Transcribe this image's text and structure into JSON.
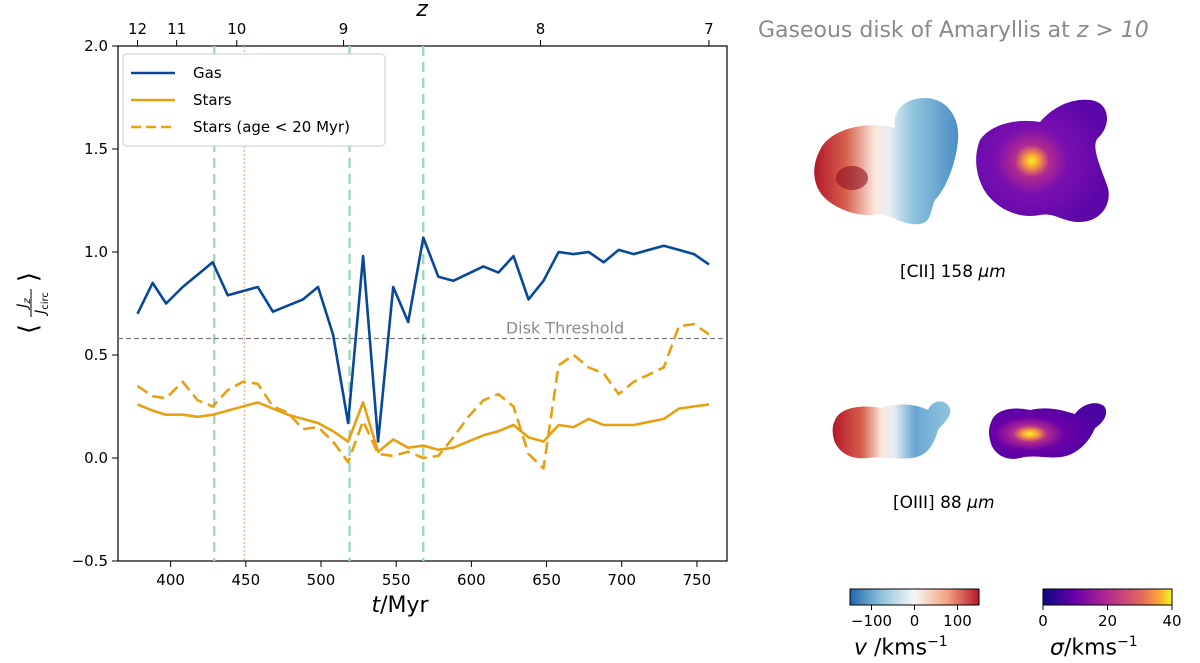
{
  "chart_data": {
    "type": "line",
    "xlabel": "t/Myr",
    "ylabel": "⟨ J_z / J_circ ⟩",
    "top_xlabel": "z",
    "xlim": [
      365,
      770
    ],
    "ylim": [
      -0.5,
      2.0
    ],
    "xticks": [
      400,
      450,
      500,
      550,
      600,
      650,
      700,
      750
    ],
    "yticks": [
      "−0.5",
      "0.0",
      "0.5",
      "1.0",
      "1.5",
      "2.0"
    ],
    "top_ticks": [
      {
        "label": "12",
        "t": 378
      },
      {
        "label": "11",
        "t": 404
      },
      {
        "label": "10",
        "t": 444
      },
      {
        "label": "9",
        "t": 515
      },
      {
        "label": "8",
        "t": 646
      },
      {
        "label": "7",
        "t": 758
      }
    ],
    "threshold": {
      "value": 0.58,
      "label": "Disk Threshold",
      "color": "#7f7f7f"
    },
    "vlines": [
      {
        "t": 429,
        "color": "#9fd8bd",
        "style": "dashed"
      },
      {
        "t": 519,
        "color": "#9fd8bd",
        "style": "dashed"
      },
      {
        "t": 568,
        "color": "#9fd8bd",
        "style": "dashed"
      },
      {
        "t": 449,
        "color": "#e8a98a",
        "style": "dotted"
      }
    ],
    "grid": false,
    "legend_position": "top-left",
    "series": [
      {
        "name": "Gas",
        "color": "#08489a",
        "style": "solid",
        "x": [
          378,
          388,
          397,
          408,
          428,
          438,
          458,
          468,
          488,
          498,
          508,
          518,
          528,
          538,
          548,
          558,
          568,
          578,
          588,
          608,
          618,
          628,
          638,
          648,
          658,
          668,
          678,
          688,
          698,
          708,
          728,
          738,
          748,
          758
        ],
        "y": [
          0.7,
          0.85,
          0.75,
          0.83,
          0.95,
          0.79,
          0.83,
          0.71,
          0.77,
          0.83,
          0.6,
          0.17,
          0.98,
          0.08,
          0.83,
          0.66,
          1.07,
          0.88,
          0.86,
          0.93,
          0.9,
          0.98,
          0.77,
          0.86,
          1.0,
          0.99,
          1.0,
          0.95,
          1.01,
          0.99,
          1.03,
          1.01,
          0.99,
          0.94
        ]
      },
      {
        "name": "Stars",
        "color": "#e6a012",
        "style": "solid",
        "x": [
          378,
          388,
          397,
          408,
          418,
          428,
          438,
          458,
          468,
          478,
          488,
          498,
          508,
          518,
          528,
          538,
          548,
          558,
          568,
          578,
          588,
          608,
          618,
          628,
          638,
          648,
          658,
          668,
          678,
          688,
          698,
          708,
          728,
          738,
          748,
          758
        ],
        "y": [
          0.26,
          0.23,
          0.21,
          0.21,
          0.2,
          0.21,
          0.23,
          0.27,
          0.24,
          0.21,
          0.19,
          0.17,
          0.13,
          0.08,
          0.27,
          0.03,
          0.09,
          0.05,
          0.06,
          0.04,
          0.05,
          0.11,
          0.13,
          0.16,
          0.1,
          0.08,
          0.16,
          0.15,
          0.19,
          0.16,
          0.16,
          0.16,
          0.19,
          0.24,
          0.25,
          0.26
        ]
      },
      {
        "name": "Stars (age < 20 Myr)",
        "color": "#e6a012",
        "style": "dashed",
        "x": [
          378,
          388,
          397,
          408,
          418,
          428,
          438,
          448,
          458,
          468,
          478,
          488,
          498,
          508,
          518,
          528,
          538,
          548,
          558,
          568,
          578,
          588,
          598,
          608,
          618,
          628,
          638,
          648,
          658,
          668,
          678,
          688,
          698,
          708,
          728,
          738,
          748,
          758
        ],
        "y": [
          0.35,
          0.3,
          0.29,
          0.37,
          0.28,
          0.25,
          0.33,
          0.37,
          0.36,
          0.25,
          0.22,
          0.14,
          0.15,
          0.08,
          -0.02,
          0.18,
          0.02,
          0.01,
          0.03,
          0.0,
          0.01,
          0.1,
          0.2,
          0.28,
          0.31,
          0.25,
          0.02,
          -0.05,
          0.45,
          0.5,
          0.44,
          0.41,
          0.31,
          0.37,
          0.44,
          0.64,
          0.65,
          0.6
        ]
      }
    ]
  },
  "panel": {
    "title": "Gaseous disk of Amaryllis at z > 10",
    "title_prefix": "Gaseous disk of Amaryllis at ",
    "title_math": "z > 10",
    "cii_label": "[CII] 158 μm",
    "cii_prefix": "[CII] 158 ",
    "cii_unit": "μm",
    "oiii_label": "[OIII] 88 μm",
    "oiii_prefix": "[OIII] 88 ",
    "oiii_unit": "μm"
  },
  "colorbars": {
    "velocity": {
      "cmap": "RdBu_r",
      "range": [
        -150,
        150
      ],
      "ticks": [
        "−100",
        "0",
        "100"
      ],
      "tick_values": [
        -100,
        0,
        100
      ],
      "label": "v /kms⁻¹",
      "label_symbol": "v",
      "label_unit": " /kms",
      "label_exp": "−1"
    },
    "dispersion": {
      "cmap": "plasma",
      "range": [
        0,
        40
      ],
      "ticks": [
        "0",
        "20",
        "40"
      ],
      "tick_values": [
        0,
        20,
        40
      ],
      "label": "σ/kms⁻¹",
      "label_symbol": "σ",
      "label_unit": "/kms",
      "label_exp": "−1"
    }
  }
}
